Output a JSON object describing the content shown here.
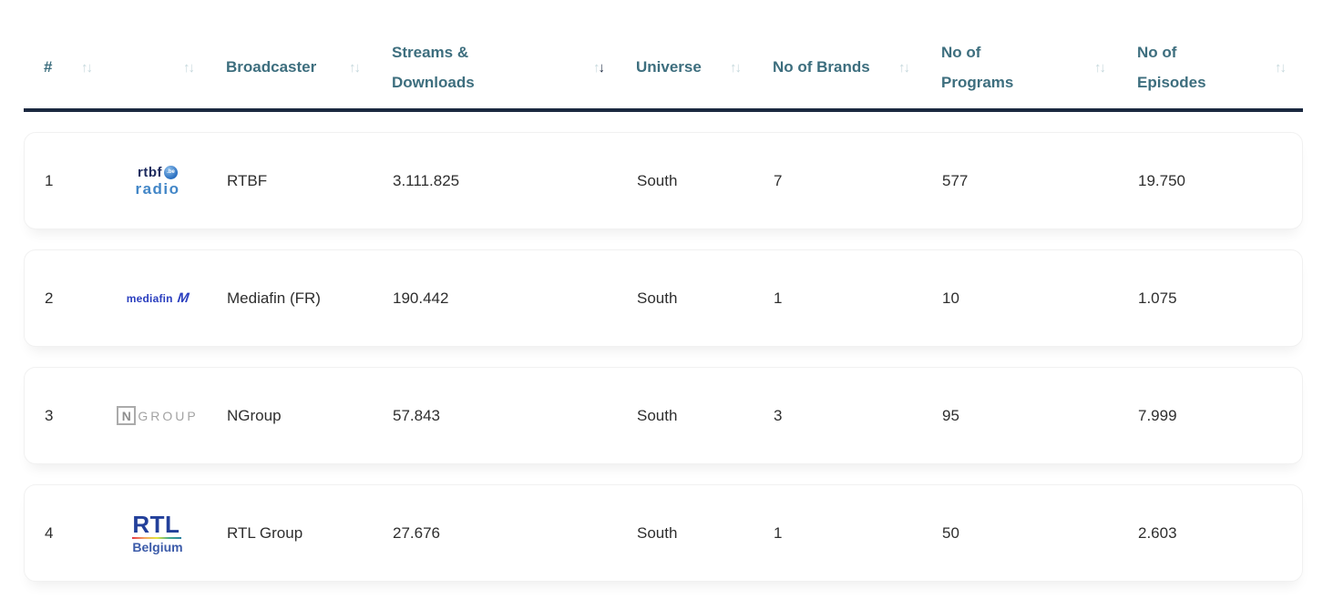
{
  "table": {
    "columns": [
      {
        "id": "rank",
        "label": "#",
        "sort": "none"
      },
      {
        "id": "logo",
        "label": "",
        "sort": "none"
      },
      {
        "id": "broadcaster",
        "label": "Broadcaster",
        "sort": "none"
      },
      {
        "id": "streams",
        "label": "Streams & Downloads",
        "sort": "desc"
      },
      {
        "id": "universe",
        "label": "Universe",
        "sort": "none"
      },
      {
        "id": "brands",
        "label": "No of Brands",
        "sort": "none"
      },
      {
        "id": "programs",
        "label": "No of Programs",
        "sort": "none"
      },
      {
        "id": "episodes",
        "label": "No of Episodes",
        "sort": "none"
      }
    ],
    "sort_icons": {
      "up": "↑",
      "down": "↓"
    },
    "rows": [
      {
        "rank": "1",
        "logo": "rtbf-radio",
        "broadcaster": "RTBF",
        "streams": "3.111.825",
        "universe": "South",
        "brands": "7",
        "programs": "577",
        "episodes": "19.750"
      },
      {
        "rank": "2",
        "logo": "mediafin",
        "broadcaster": "Mediafin (FR)",
        "streams": "190.442",
        "universe": "South",
        "brands": "1",
        "programs": "10",
        "episodes": "1.075"
      },
      {
        "rank": "3",
        "logo": "ngroup",
        "broadcaster": "NGroup",
        "streams": "57.843",
        "universe": "South",
        "brands": "3",
        "programs": "95",
        "episodes": "7.999"
      },
      {
        "rank": "4",
        "logo": "rtl-belgium",
        "broadcaster": "RTL Group",
        "streams": "27.676",
        "universe": "South",
        "brands": "1",
        "programs": "50",
        "episodes": "2.603"
      }
    ],
    "logos": {
      "rtbf": {
        "text": "rtbf",
        "badge": ".be",
        "sub": "radio"
      },
      "mediafin": {
        "text": "mediafin",
        "mark": "M"
      },
      "ngroup": {
        "letter": "N",
        "rest": "GROUP"
      },
      "rtl": {
        "text": "RTL",
        "sub": "Belgium"
      }
    },
    "colors": {
      "header_text": "#3d6e7e",
      "sort_inactive": "#c5d8dc",
      "sort_active": "#1b2940",
      "header_rule": "#1b2940",
      "row_text": "#2e2e2e"
    }
  }
}
